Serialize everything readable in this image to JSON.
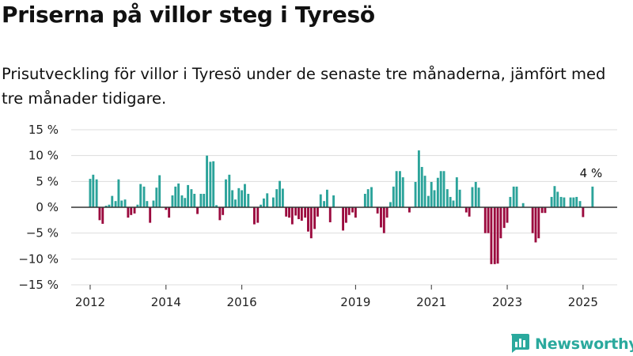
{
  "header": {
    "title": "Priserna på villor steg i Tyresö",
    "subtitle": "Prisutveckling för villor i Tyresö under de senaste tre månaderna, jämfört med tre månader tidigare."
  },
  "brand": {
    "name": "Newsworthy",
    "icon": "bar-chart-logo-icon"
  },
  "colors": {
    "positive": "#2ba39a",
    "negative": "#9b0a3e",
    "brand": "#2aa99d",
    "zero_line": "#333333",
    "grid": "#dddddd"
  },
  "chart_data": {
    "type": "bar",
    "ylim": [
      -15,
      15
    ],
    "y_ticks": [
      15,
      10,
      5,
      0,
      -5,
      -10,
      -15
    ],
    "y_tick_labels": [
      "15 %",
      "10 %",
      "5 %",
      "0 %",
      "−5 %",
      "−10 %",
      "−15 %"
    ],
    "x_tick_labels": [
      "2012",
      "2014",
      "2016",
      "2019",
      "2021",
      "2023",
      "2025"
    ],
    "x_tick_positions": [
      2012,
      2014,
      2016,
      2019,
      2021,
      2023,
      2025
    ],
    "x_domain": [
      2011.5,
      2025.9
    ],
    "grid": true,
    "annotation": {
      "text": "4 %",
      "x": 2025.21,
      "y": 4
    },
    "x": [
      2012.0,
      2012.08,
      2012.17,
      2012.25,
      2012.33,
      2012.42,
      2012.5,
      2012.58,
      2012.67,
      2012.75,
      2012.83,
      2012.92,
      2013.0,
      2013.08,
      2013.17,
      2013.25,
      2013.33,
      2013.42,
      2013.5,
      2013.58,
      2013.67,
      2013.75,
      2013.83,
      2013.92,
      2014.0,
      2014.08,
      2014.17,
      2014.25,
      2014.33,
      2014.42,
      2014.5,
      2014.58,
      2014.67,
      2014.75,
      2014.83,
      2014.92,
      2015.0,
      2015.08,
      2015.17,
      2015.25,
      2015.33,
      2015.42,
      2015.5,
      2015.58,
      2015.67,
      2015.75,
      2015.83,
      2015.92,
      2016.0,
      2016.08,
      2016.17,
      2016.25,
      2016.33,
      2016.42,
      2016.5,
      2016.58,
      2016.67,
      2016.75,
      2016.83,
      2016.92,
      2017.0,
      2017.08,
      2017.17,
      2017.25,
      2017.33,
      2017.42,
      2017.5,
      2017.58,
      2017.67,
      2017.75,
      2017.83,
      2017.92,
      2018.0,
      2018.08,
      2018.17,
      2018.25,
      2018.33,
      2018.42,
      2018.5,
      2018.58,
      2018.67,
      2018.75,
      2018.83,
      2018.92,
      2019.0,
      2019.08,
      2019.17,
      2019.25,
      2019.33,
      2019.42,
      2019.5,
      2019.58,
      2019.67,
      2019.75,
      2019.83,
      2019.92,
      2020.0,
      2020.08,
      2020.17,
      2020.25,
      2020.33,
      2020.42,
      2020.5,
      2020.58,
      2020.67,
      2020.75,
      2020.83,
      2020.92,
      2021.0,
      2021.08,
      2021.17,
      2021.25,
      2021.33,
      2021.42,
      2021.5,
      2021.58,
      2021.67,
      2021.75,
      2021.83,
      2021.92,
      2022.0,
      2022.08,
      2022.17,
      2022.25,
      2022.33,
      2022.42,
      2022.5,
      2022.58,
      2022.67,
      2022.75,
      2022.83,
      2022.92,
      2023.0,
      2023.08,
      2023.17,
      2023.25,
      2023.33,
      2023.42,
      2023.5,
      2023.58,
      2023.67,
      2023.75,
      2023.83,
      2023.92,
      2024.0,
      2024.08,
      2024.17,
      2024.25,
      2024.33,
      2024.42,
      2024.5,
      2024.58,
      2024.67,
      2024.75,
      2024.83,
      2024.92,
      2025.0,
      2025.08,
      2025.17,
      2025.25
    ],
    "values": [
      5.5,
      6.3,
      5.4,
      -2.5,
      -3.2,
      0.3,
      0.5,
      2.2,
      1.2,
      5.4,
      1.3,
      1.5,
      -2,
      -1.5,
      -1.2,
      0.5,
      4.5,
      4,
      1.2,
      -3,
      1.3,
      3.8,
      6.2,
      0,
      -0.5,
      -2,
      2.3,
      4,
      4.6,
      2.3,
      1.8,
      4.3,
      3.5,
      2.6,
      -1.3,
      2.6,
      2.6,
      10,
      8.8,
      8.9,
      0.4,
      -2.5,
      -1.5,
      5.4,
      6.3,
      3.3,
      1.5,
      3.7,
      3.3,
      4.5,
      2.6,
      0,
      -3.3,
      -3,
      0.5,
      1.7,
      2.7,
      0,
      1.9,
      3.5,
      5.1,
      3.6,
      -1.8,
      -2,
      -3.3,
      -1.6,
      -2.3,
      -2.6,
      -2,
      -4.7,
      -6,
      -4.2,
      -1.8,
      2.5,
      1.2,
      3.4,
      -2.9,
      2.3,
      0,
      0,
      -4.5,
      -3,
      -1.5,
      -1,
      -2,
      0,
      0,
      2.6,
      3.5,
      3.9,
      0,
      -1.2,
      -3.9,
      -5,
      -2,
      1,
      4,
      7,
      7,
      5.8,
      0,
      -1,
      0,
      4.9,
      11,
      7.8,
      6.1,
      2.2,
      4.9,
      3.3,
      5.7,
      7,
      7,
      3.5,
      2,
      1.3,
      5.8,
      3.4,
      0,
      -1,
      -1.8,
      3.9,
      4.9,
      3.8,
      0,
      -5,
      -5,
      -11,
      -11,
      -10.9,
      -6,
      -4,
      -3,
      2,
      4,
      4,
      0,
      0.8,
      0,
      0,
      -5,
      -6.8,
      -6,
      -1.1,
      -1.1,
      0,
      2,
      4.1,
      3,
      2,
      1.9,
      0,
      1.9,
      1.9,
      2,
      1.2,
      -1.9,
      0,
      0,
      4
    ]
  }
}
